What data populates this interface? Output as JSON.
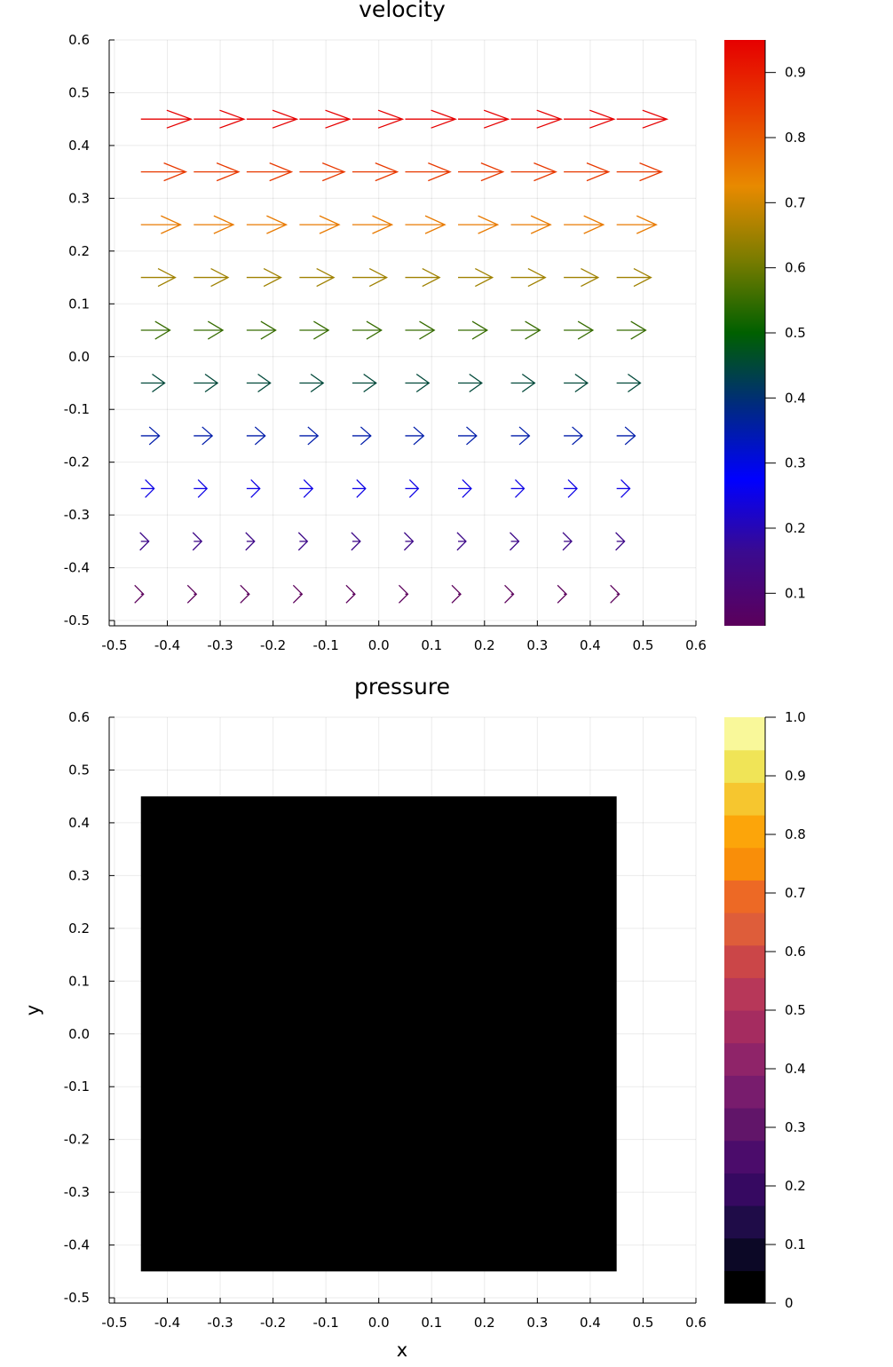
{
  "chart_data": [
    {
      "type": "quiver",
      "title": "velocity",
      "xlabel": "",
      "ylabel": "",
      "xlim": [
        -0.51,
        0.6
      ],
      "ylim": [
        -0.51,
        0.6
      ],
      "xticks": [
        "-0.5",
        "-0.4",
        "-0.3",
        "-0.2",
        "-0.1",
        "0.0",
        "0.1",
        "0.2",
        "0.3",
        "0.4",
        "0.5",
        "0.6"
      ],
      "yticks": [
        "-0.5",
        "-0.4",
        "-0.3",
        "-0.2",
        "-0.1",
        "0.0",
        "0.1",
        "0.2",
        "0.3",
        "0.4",
        "0.5",
        "0.6"
      ],
      "grid": true,
      "x": [
        -0.45,
        -0.35,
        -0.25,
        -0.15,
        -0.05,
        0.05,
        0.15,
        0.25,
        0.35,
        0.45
      ],
      "y": [
        -0.45,
        -0.35,
        -0.25,
        -0.15,
        -0.05,
        0.05,
        0.15,
        0.25,
        0.35,
        0.45
      ],
      "u": [
        0.05,
        0.15,
        0.25,
        0.35,
        0.45,
        0.55,
        0.65,
        0.75,
        0.85,
        0.95
      ],
      "v": 0,
      "colorbar": {
        "colormap": "rainbow",
        "range": [
          0.05,
          0.95
        ],
        "ticks": [
          "0.1",
          "0.2",
          "0.3",
          "0.4",
          "0.5",
          "0.6",
          "0.7",
          "0.8",
          "0.9"
        ],
        "stops": [
          "#5b005b",
          "#3a0a8f",
          "#0000ff",
          "#002a80",
          "#006000",
          "#7a7c00",
          "#e88a00",
          "#e84000",
          "#e60000"
        ]
      }
    },
    {
      "type": "heatmap",
      "title": "pressure",
      "xlabel": "x",
      "ylabel": "y",
      "xlim": [
        -0.51,
        0.6
      ],
      "ylim": [
        -0.51,
        0.6
      ],
      "xticks": [
        "-0.5",
        "-0.4",
        "-0.3",
        "-0.2",
        "-0.1",
        "0.0",
        "0.1",
        "0.2",
        "0.3",
        "0.4",
        "0.5",
        "0.6"
      ],
      "yticks": [
        "-0.5",
        "-0.4",
        "-0.3",
        "-0.2",
        "-0.1",
        "0.0",
        "0.1",
        "0.2",
        "0.3",
        "0.4",
        "0.5",
        "0.6"
      ],
      "grid": true,
      "x_extent": [
        -0.45,
        0.45
      ],
      "y_extent": [
        -0.45,
        0.45
      ],
      "values": [
        [
          0
        ]
      ],
      "colorbar": {
        "colormap": "inferno",
        "range": [
          0,
          1
        ],
        "ticks": [
          "0",
          "0.1",
          "0.2",
          "0.3",
          "0.4",
          "0.5",
          "0.6",
          "0.7",
          "0.8",
          "0.9",
          "1.0"
        ],
        "levels": [
          "#000000",
          "#0c0826",
          "#1f0c48",
          "#360961",
          "#4b0c6b",
          "#611569",
          "#781c6d",
          "#8f2469",
          "#a52c60",
          "#b73759",
          "#cb4648",
          "#de5d3a",
          "#ed6925",
          "#f98e09",
          "#fca50a",
          "#f6c62f",
          "#f0e457",
          "#f9f89a"
        ]
      }
    }
  ]
}
